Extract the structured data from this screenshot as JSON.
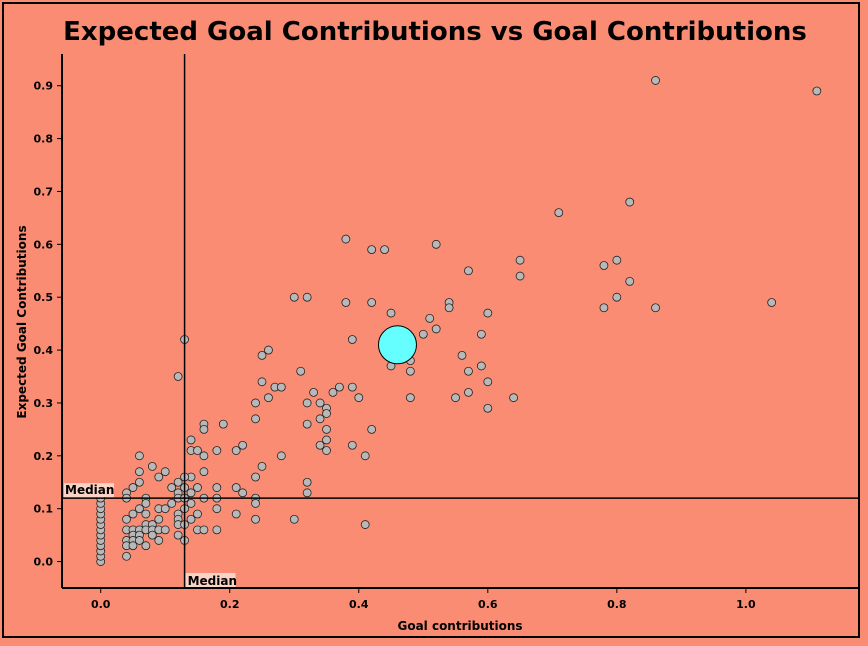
{
  "chart_data": {
    "type": "scatter",
    "title": "Expected Goal Contributions vs Goal Contributions",
    "xlabel": "Goal contributions",
    "ylabel": "Expected Goal Contributions",
    "xlim": [
      -0.06,
      1.18
    ],
    "ylim": [
      -0.05,
      0.96
    ],
    "x_ticks": [
      0.0,
      0.2,
      0.4,
      0.6,
      0.8,
      1.0
    ],
    "x_tick_labels": [
      "0.0",
      "0.2",
      "0.4",
      "0.6",
      "0.8",
      "1.0"
    ],
    "y_ticks": [
      0.0,
      0.1,
      0.2,
      0.3,
      0.4,
      0.5,
      0.6,
      0.7,
      0.8,
      0.9
    ],
    "y_tick_labels": [
      "0.0",
      "0.1",
      "0.2",
      "0.3",
      "0.4",
      "0.5",
      "0.6",
      "0.7",
      "0.8",
      "0.9"
    ],
    "grid": false,
    "median_x": 0.13,
    "median_y": 0.12,
    "median_label": "Median",
    "point_color": "#b8b8b8",
    "highlight_color": "#66ffff",
    "background_color": "#fa8c73",
    "highlight": {
      "x": 0.46,
      "y": 0.41
    },
    "points": [
      [
        0.86,
        0.91
      ],
      [
        1.11,
        0.89
      ],
      [
        0.82,
        0.68
      ],
      [
        0.71,
        0.66
      ],
      [
        0.38,
        0.61
      ],
      [
        0.42,
        0.59
      ],
      [
        0.44,
        0.59
      ],
      [
        0.52,
        0.6
      ],
      [
        0.8,
        0.57
      ],
      [
        0.65,
        0.57
      ],
      [
        0.78,
        0.56
      ],
      [
        0.57,
        0.55
      ],
      [
        0.65,
        0.54
      ],
      [
        0.82,
        0.53
      ],
      [
        0.3,
        0.5
      ],
      [
        0.32,
        0.5
      ],
      [
        0.8,
        0.5
      ],
      [
        0.38,
        0.49
      ],
      [
        0.42,
        0.49
      ],
      [
        0.54,
        0.49
      ],
      [
        0.54,
        0.48
      ],
      [
        0.78,
        0.48
      ],
      [
        0.86,
        0.48
      ],
      [
        1.04,
        0.49
      ],
      [
        0.45,
        0.47
      ],
      [
        0.6,
        0.47
      ],
      [
        0.51,
        0.46
      ],
      [
        0.52,
        0.44
      ],
      [
        0.5,
        0.43
      ],
      [
        0.59,
        0.43
      ],
      [
        0.13,
        0.42
      ],
      [
        0.39,
        0.42
      ],
      [
        0.26,
        0.4
      ],
      [
        0.25,
        0.39
      ],
      [
        0.56,
        0.39
      ],
      [
        0.48,
        0.38
      ],
      [
        0.45,
        0.37
      ],
      [
        0.59,
        0.37
      ],
      [
        0.31,
        0.36
      ],
      [
        0.48,
        0.36
      ],
      [
        0.57,
        0.36
      ],
      [
        0.12,
        0.35
      ],
      [
        0.25,
        0.34
      ],
      [
        0.6,
        0.34
      ],
      [
        0.27,
        0.33
      ],
      [
        0.28,
        0.33
      ],
      [
        0.37,
        0.33
      ],
      [
        0.39,
        0.33
      ],
      [
        0.33,
        0.32
      ],
      [
        0.36,
        0.32
      ],
      [
        0.57,
        0.32
      ],
      [
        0.26,
        0.31
      ],
      [
        0.4,
        0.31
      ],
      [
        0.48,
        0.31
      ],
      [
        0.55,
        0.31
      ],
      [
        0.64,
        0.31
      ],
      [
        0.24,
        0.3
      ],
      [
        0.32,
        0.3
      ],
      [
        0.34,
        0.3
      ],
      [
        0.35,
        0.29
      ],
      [
        0.6,
        0.29
      ],
      [
        0.35,
        0.28
      ],
      [
        0.24,
        0.27
      ],
      [
        0.34,
        0.27
      ],
      [
        0.16,
        0.26
      ],
      [
        0.19,
        0.26
      ],
      [
        0.32,
        0.26
      ],
      [
        0.16,
        0.25
      ],
      [
        0.35,
        0.25
      ],
      [
        0.42,
        0.25
      ],
      [
        0.14,
        0.23
      ],
      [
        0.35,
        0.23
      ],
      [
        0.22,
        0.22
      ],
      [
        0.34,
        0.22
      ],
      [
        0.39,
        0.22
      ],
      [
        0.14,
        0.21
      ],
      [
        0.15,
        0.21
      ],
      [
        0.18,
        0.21
      ],
      [
        0.21,
        0.21
      ],
      [
        0.35,
        0.21
      ],
      [
        0.06,
        0.2
      ],
      [
        0.16,
        0.2
      ],
      [
        0.28,
        0.2
      ],
      [
        0.41,
        0.2
      ],
      [
        0.08,
        0.18
      ],
      [
        0.25,
        0.18
      ],
      [
        0.06,
        0.17
      ],
      [
        0.1,
        0.17
      ],
      [
        0.16,
        0.17
      ],
      [
        0.09,
        0.16
      ],
      [
        0.14,
        0.16
      ],
      [
        0.24,
        0.16
      ],
      [
        0.13,
        0.16
      ],
      [
        0.06,
        0.15
      ],
      [
        0.12,
        0.15
      ],
      [
        0.32,
        0.15
      ],
      [
        0.05,
        0.14
      ],
      [
        0.11,
        0.14
      ],
      [
        0.13,
        0.14
      ],
      [
        0.15,
        0.14
      ],
      [
        0.18,
        0.14
      ],
      [
        0.21,
        0.14
      ],
      [
        0.04,
        0.13
      ],
      [
        0.12,
        0.13
      ],
      [
        0.14,
        0.13
      ],
      [
        0.22,
        0.13
      ],
      [
        0.32,
        0.13
      ],
      [
        0.04,
        0.12
      ],
      [
        0.07,
        0.12
      ],
      [
        0.12,
        0.12
      ],
      [
        0.13,
        0.12
      ],
      [
        0.16,
        0.12
      ],
      [
        0.18,
        0.12
      ],
      [
        0.24,
        0.12
      ],
      [
        0.07,
        0.11
      ],
      [
        0.11,
        0.11
      ],
      [
        0.14,
        0.11
      ],
      [
        0.24,
        0.11
      ],
      [
        0.06,
        0.1
      ],
      [
        0.09,
        0.1
      ],
      [
        0.1,
        0.1
      ],
      [
        0.13,
        0.1
      ],
      [
        0.18,
        0.1
      ],
      [
        0.05,
        0.09
      ],
      [
        0.07,
        0.09
      ],
      [
        0.12,
        0.09
      ],
      [
        0.15,
        0.09
      ],
      [
        0.21,
        0.09
      ],
      [
        0.04,
        0.08
      ],
      [
        0.09,
        0.08
      ],
      [
        0.12,
        0.08
      ],
      [
        0.14,
        0.08
      ],
      [
        0.24,
        0.08
      ],
      [
        0.3,
        0.08
      ],
      [
        0.07,
        0.07
      ],
      [
        0.08,
        0.07
      ],
      [
        0.12,
        0.07
      ],
      [
        0.13,
        0.07
      ],
      [
        0.41,
        0.07
      ],
      [
        0.04,
        0.06
      ],
      [
        0.05,
        0.06
      ],
      [
        0.06,
        0.06
      ],
      [
        0.07,
        0.06
      ],
      [
        0.08,
        0.06
      ],
      [
        0.09,
        0.06
      ],
      [
        0.1,
        0.06
      ],
      [
        0.15,
        0.06
      ],
      [
        0.16,
        0.06
      ],
      [
        0.18,
        0.06
      ],
      [
        0.05,
        0.05
      ],
      [
        0.06,
        0.05
      ],
      [
        0.08,
        0.05
      ],
      [
        0.12,
        0.05
      ],
      [
        0.04,
        0.04
      ],
      [
        0.05,
        0.04
      ],
      [
        0.06,
        0.04
      ],
      [
        0.09,
        0.04
      ],
      [
        0.13,
        0.04
      ],
      [
        0.04,
        0.03
      ],
      [
        0.05,
        0.03
      ],
      [
        0.07,
        0.03
      ],
      [
        0.04,
        0.01
      ],
      [
        0.0,
        0.0
      ],
      [
        0.0,
        0.01
      ],
      [
        0.0,
        0.02
      ],
      [
        0.0,
        0.03
      ],
      [
        0.0,
        0.04
      ],
      [
        0.0,
        0.05
      ],
      [
        0.0,
        0.06
      ],
      [
        0.0,
        0.07
      ],
      [
        0.0,
        0.08
      ],
      [
        0.0,
        0.09
      ],
      [
        0.0,
        0.1
      ],
      [
        0.0,
        0.11
      ],
      [
        0.0,
        0.12
      ]
    ]
  }
}
